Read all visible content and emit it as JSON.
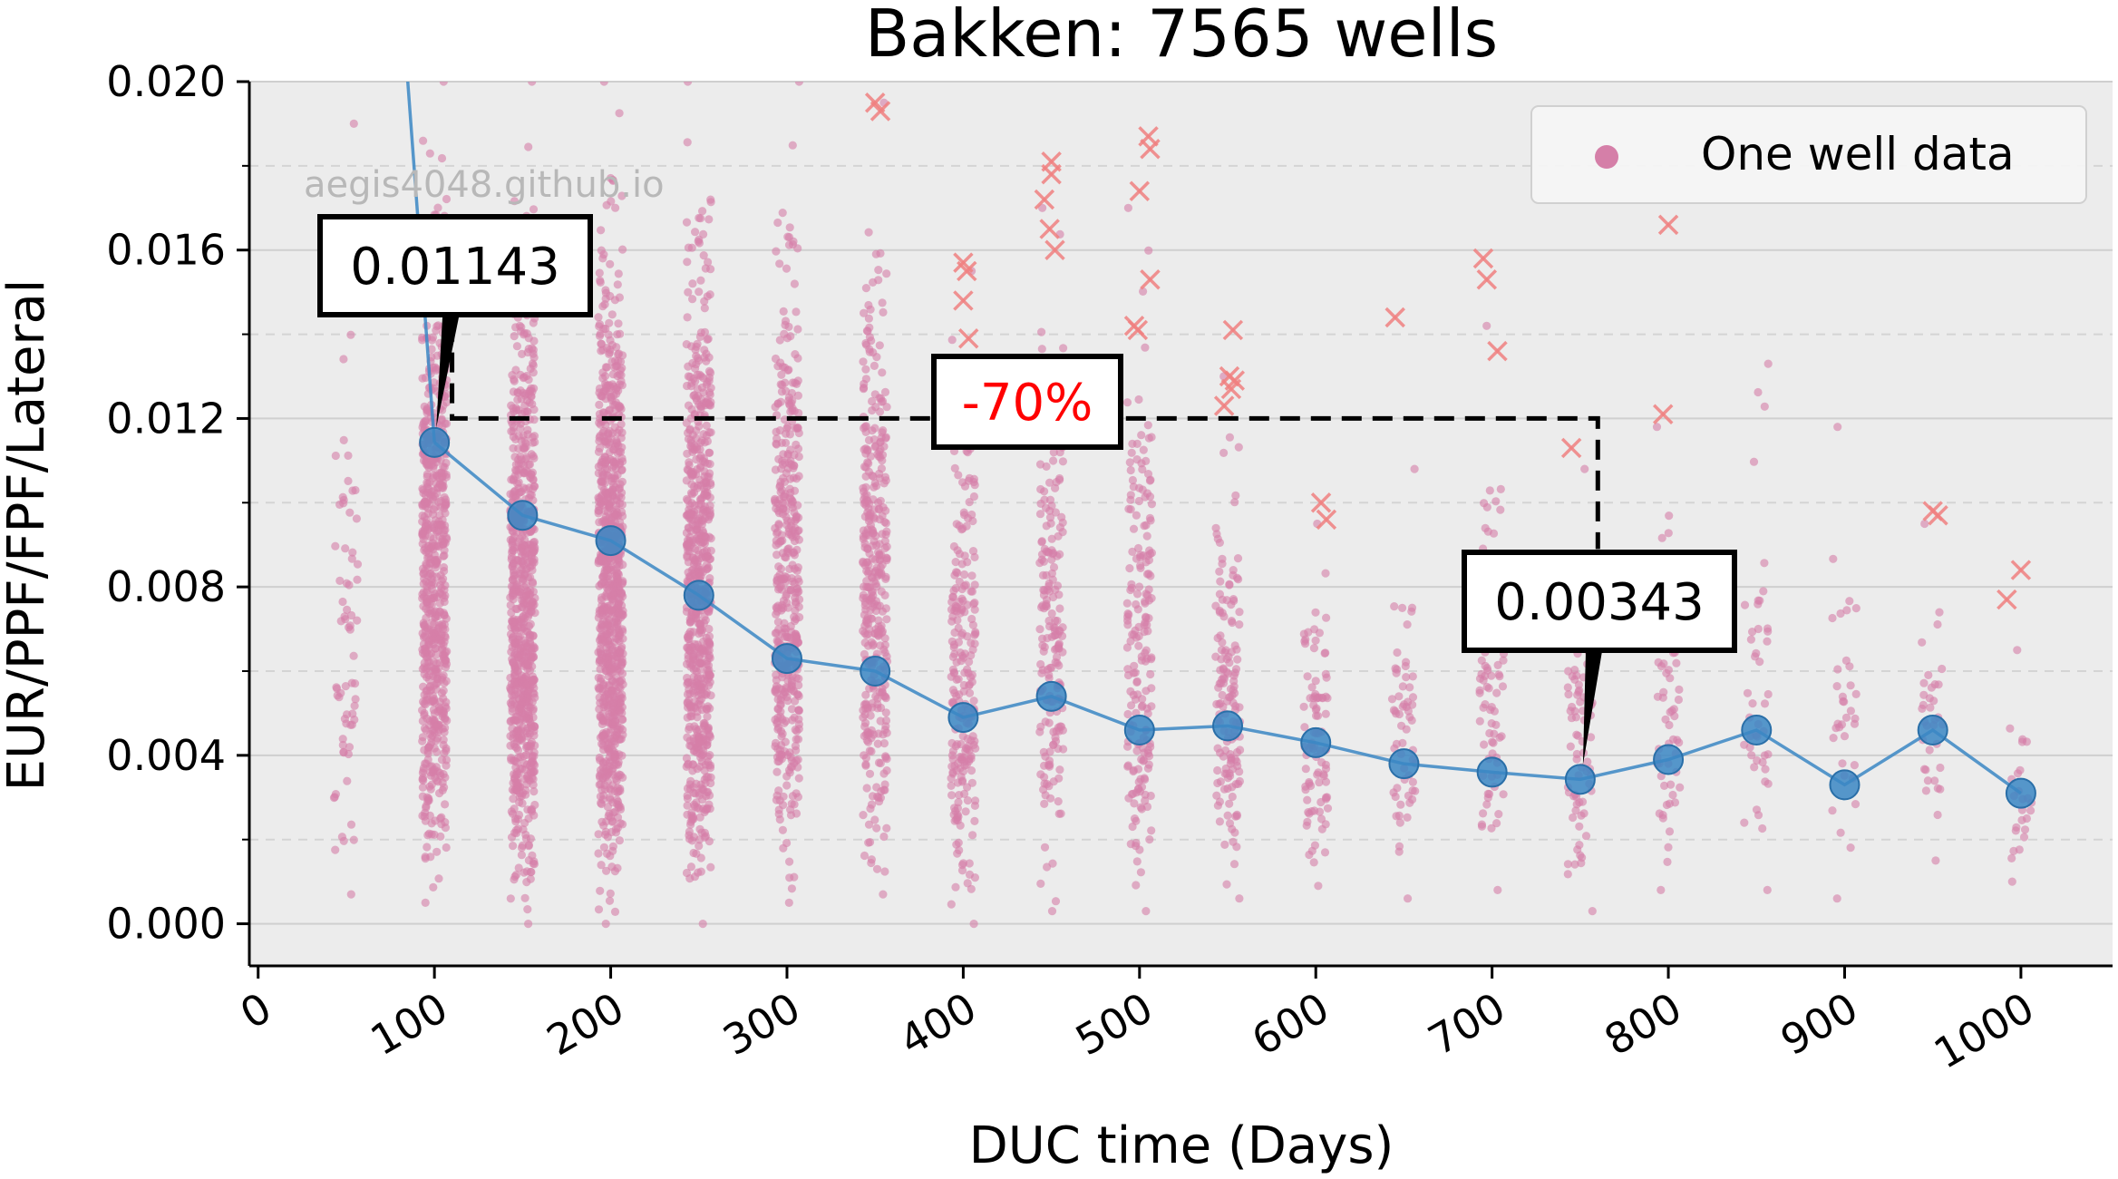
{
  "chart_data": {
    "type": "scatter",
    "title": "Bakken: 7565 wells",
    "xlabel": "DUC time (Days)",
    "ylabel": "EUR/PPF/FPF/Lateral",
    "xlim": [
      -5,
      1052
    ],
    "ylim": [
      -0.001,
      0.02
    ],
    "xticks": [
      0,
      100,
      200,
      300,
      400,
      500,
      600,
      700,
      800,
      900,
      1000
    ],
    "yticks": [
      0.0,
      0.004,
      0.008,
      0.012,
      0.016,
      0.02
    ],
    "ytick_labels": [
      "0.000",
      "0.004",
      "0.008",
      "0.012",
      "0.016",
      "0.020"
    ],
    "grid": "horizontal dashed",
    "watermark": "aegis4048.github.io",
    "legend": {
      "label": "One well data",
      "placement": "top-right"
    },
    "colors": {
      "points": "#d57fa8",
      "outliers": "#f08080",
      "line": "#3b87c4",
      "background": "#ececec",
      "annotation_pct": "#ff0000"
    },
    "median_series": {
      "x": [
        100,
        150,
        200,
        250,
        300,
        350,
        400,
        450,
        500,
        550,
        600,
        650,
        700,
        750,
        800,
        850,
        900,
        950,
        1000
      ],
      "y": [
        0.01143,
        0.0097,
        0.0091,
        0.0078,
        0.0063,
        0.006,
        0.0049,
        0.0054,
        0.0046,
        0.0047,
        0.0043,
        0.0038,
        0.0036,
        0.00343,
        0.0039,
        0.0046,
        0.0033,
        0.0046,
        0.0031
      ]
    },
    "steep_segment": {
      "x": [
        84,
        100
      ],
      "y": [
        0.0205,
        0.01143
      ]
    },
    "scatter_groups": [
      {
        "x": 50,
        "count": 70,
        "ymin": 0.0007,
        "ymax": 0.019
      },
      {
        "x": 100,
        "count": 700,
        "ymin": 0.0005,
        "ymax": 0.02
      },
      {
        "x": 150,
        "count": 800,
        "ymin": 0.0,
        "ymax": 0.02
      },
      {
        "x": 200,
        "count": 900,
        "ymin": 0.0,
        "ymax": 0.02
      },
      {
        "x": 250,
        "count": 700,
        "ymin": 0.0,
        "ymax": 0.02
      },
      {
        "x": 300,
        "count": 450,
        "ymin": 0.0005,
        "ymax": 0.02
      },
      {
        "x": 350,
        "count": 380,
        "ymin": 0.0007,
        "ymax": 0.0195
      },
      {
        "x": 400,
        "count": 230,
        "ymin": 0.0,
        "ymax": 0.0155
      },
      {
        "x": 450,
        "count": 200,
        "ymin": 0.0003,
        "ymax": 0.017
      },
      {
        "x": 500,
        "count": 190,
        "ymin": 0.0003,
        "ymax": 0.017
      },
      {
        "x": 550,
        "count": 150,
        "ymin": 0.0006,
        "ymax": 0.013
      },
      {
        "x": 600,
        "count": 90,
        "ymin": 0.0009,
        "ymax": 0.0095
      },
      {
        "x": 650,
        "count": 60,
        "ymin": 0.0006,
        "ymax": 0.0108
      },
      {
        "x": 700,
        "count": 90,
        "ymin": 0.0008,
        "ymax": 0.0142
      },
      {
        "x": 750,
        "count": 80,
        "ymin": 0.0003,
        "ymax": 0.0108
      },
      {
        "x": 800,
        "count": 60,
        "ymin": 0.0008,
        "ymax": 0.0118
      },
      {
        "x": 850,
        "count": 45,
        "ymin": 0.0008,
        "ymax": 0.0133
      },
      {
        "x": 900,
        "count": 35,
        "ymin": 0.0006,
        "ymax": 0.0118
      },
      {
        "x": 950,
        "count": 35,
        "ymin": 0.0015,
        "ymax": 0.0095
      },
      {
        "x": 1000,
        "count": 25,
        "ymin": 0.001,
        "ymax": 0.0065
      }
    ],
    "outliers": [
      {
        "x": 350,
        "y": 0.0195
      },
      {
        "x": 353,
        "y": 0.0193
      },
      {
        "x": 400,
        "y": 0.0157
      },
      {
        "x": 402,
        "y": 0.0155
      },
      {
        "x": 400,
        "y": 0.0148
      },
      {
        "x": 403,
        "y": 0.0139
      },
      {
        "x": 450,
        "y": 0.0181
      },
      {
        "x": 450,
        "y": 0.0178
      },
      {
        "x": 446,
        "y": 0.0172
      },
      {
        "x": 449,
        "y": 0.0165
      },
      {
        "x": 452,
        "y": 0.016
      },
      {
        "x": 500,
        "y": 0.0174
      },
      {
        "x": 505,
        "y": 0.0187
      },
      {
        "x": 506,
        "y": 0.0184
      },
      {
        "x": 506,
        "y": 0.0153
      },
      {
        "x": 497,
        "y": 0.0142
      },
      {
        "x": 499,
        "y": 0.0141
      },
      {
        "x": 553,
        "y": 0.0141
      },
      {
        "x": 551,
        "y": 0.013
      },
      {
        "x": 554,
        "y": 0.0129
      },
      {
        "x": 552,
        "y": 0.0127
      },
      {
        "x": 548,
        "y": 0.0123
      },
      {
        "x": 603,
        "y": 0.01
      },
      {
        "x": 606,
        "y": 0.0096
      },
      {
        "x": 645,
        "y": 0.0144
      },
      {
        "x": 695,
        "y": 0.0158
      },
      {
        "x": 697,
        "y": 0.0153
      },
      {
        "x": 703,
        "y": 0.0136
      },
      {
        "x": 745,
        "y": 0.0113
      },
      {
        "x": 800,
        "y": 0.0166
      },
      {
        "x": 797,
        "y": 0.0121
      },
      {
        "x": 950,
        "y": 0.0098
      },
      {
        "x": 953,
        "y": 0.0097
      },
      {
        "x": 1000,
        "y": 0.0084
      },
      {
        "x": 992,
        "y": 0.0077
      }
    ],
    "annotations": [
      {
        "text": "0.01143",
        "x": 100,
        "y": 0.01143
      },
      {
        "text": "0.00343",
        "x": 750,
        "y": 0.00343
      },
      {
        "text": "-70%",
        "color": "#ff0000"
      }
    ],
    "bracket": {
      "y": 0.012,
      "x_start": 110,
      "x_end": 760,
      "y_left_top": 0.0143,
      "y_right_bottom": 0.0089
    }
  }
}
